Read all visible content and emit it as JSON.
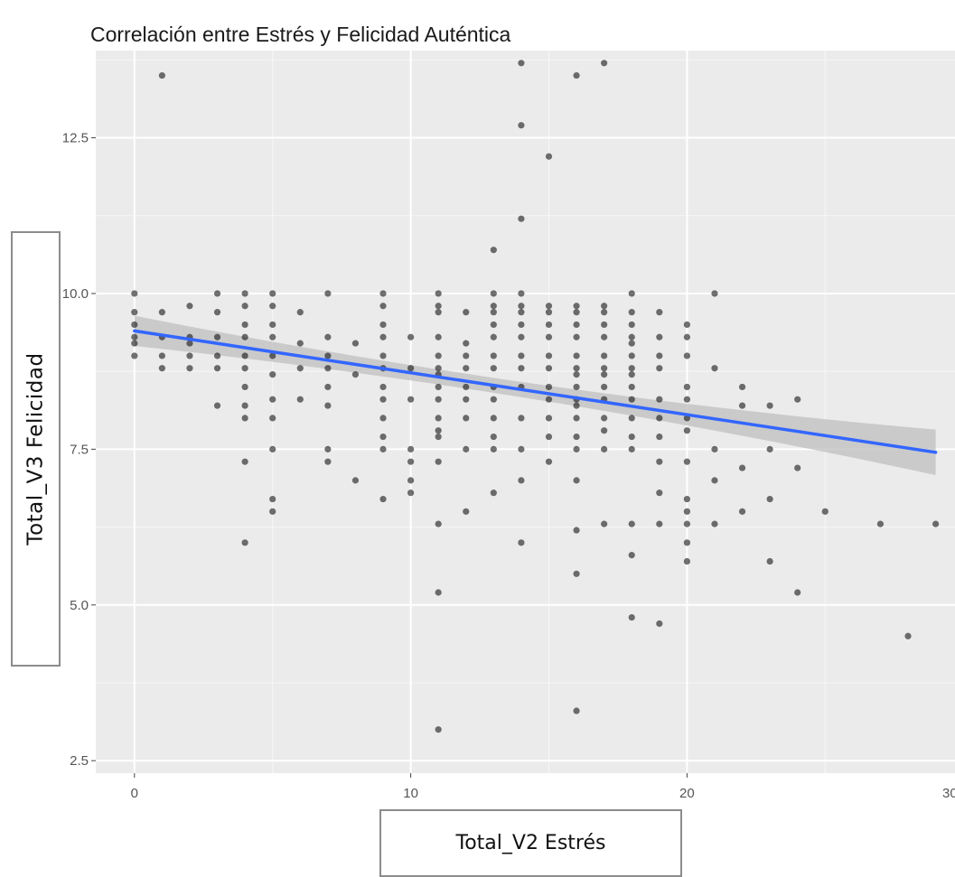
{
  "chart_data": {
    "type": "scatter",
    "title": "Correlación entre Estrés y Felicidad Auténtica",
    "xlabel": "Total_V2 Estrés",
    "ylabel": "Total_V3 Felicidad",
    "xlim": [
      -1.4,
      29.7
    ],
    "ylim": [
      2.3,
      13.9
    ],
    "xticks": [
      {
        "value": 0,
        "label": "0"
      },
      {
        "value": 10,
        "label": "10"
      },
      {
        "value": 20,
        "label": "20"
      },
      {
        "value": 30,
        "label": "30"
      }
    ],
    "yticks": [
      {
        "value": 2.5,
        "label": "2.5"
      },
      {
        "value": 5.0,
        "label": "5.0"
      },
      {
        "value": 7.5,
        "label": "7.5"
      },
      {
        "value": 10.0,
        "label": "10.0"
      },
      {
        "value": 12.5,
        "label": "12.5"
      }
    ],
    "grid": true,
    "points": [
      [
        0,
        10.0
      ],
      [
        0,
        9.7
      ],
      [
        0,
        9.5
      ],
      [
        0,
        9.3
      ],
      [
        0,
        9.2
      ],
      [
        0,
        9.0
      ],
      [
        1,
        13.5
      ],
      [
        1,
        9.7
      ],
      [
        1,
        9.3
      ],
      [
        1,
        9.0
      ],
      [
        1,
        8.8
      ],
      [
        2,
        9.8
      ],
      [
        2,
        9.3
      ],
      [
        2,
        9.2
      ],
      [
        2,
        9.0
      ],
      [
        2,
        8.8
      ],
      [
        3,
        10.0
      ],
      [
        3,
        9.7
      ],
      [
        3,
        9.3
      ],
      [
        3,
        9.0
      ],
      [
        3,
        8.8
      ],
      [
        3,
        8.2
      ],
      [
        4,
        10.0
      ],
      [
        4,
        9.8
      ],
      [
        4,
        9.5
      ],
      [
        4,
        9.3
      ],
      [
        4,
        9.0
      ],
      [
        4,
        8.8
      ],
      [
        4,
        8.5
      ],
      [
        4,
        8.2
      ],
      [
        4,
        8.0
      ],
      [
        4,
        7.3
      ],
      [
        4,
        6.0
      ],
      [
        5,
        10.0
      ],
      [
        5,
        9.8
      ],
      [
        5,
        9.5
      ],
      [
        5,
        9.3
      ],
      [
        5,
        9.0
      ],
      [
        5,
        8.7
      ],
      [
        5,
        8.3
      ],
      [
        5,
        8.0
      ],
      [
        5,
        7.5
      ],
      [
        5,
        6.7
      ],
      [
        5,
        6.5
      ],
      [
        6,
        9.7
      ],
      [
        6,
        9.2
      ],
      [
        6,
        8.8
      ],
      [
        6,
        8.3
      ],
      [
        7,
        10.0
      ],
      [
        7,
        9.3
      ],
      [
        7,
        9.0
      ],
      [
        7,
        8.8
      ],
      [
        7,
        8.5
      ],
      [
        7,
        8.2
      ],
      [
        7,
        7.5
      ],
      [
        7,
        7.3
      ],
      [
        8,
        9.2
      ],
      [
        8,
        8.7
      ],
      [
        8,
        7.0
      ],
      [
        9,
        10.0
      ],
      [
        9,
        9.8
      ],
      [
        9,
        9.5
      ],
      [
        9,
        9.3
      ],
      [
        9,
        9.0
      ],
      [
        9,
        8.8
      ],
      [
        9,
        8.5
      ],
      [
        9,
        8.3
      ],
      [
        9,
        8.0
      ],
      [
        9,
        7.7
      ],
      [
        9,
        7.5
      ],
      [
        9,
        6.7
      ],
      [
        10,
        9.3
      ],
      [
        10,
        8.8
      ],
      [
        10,
        8.3
      ],
      [
        10,
        7.5
      ],
      [
        10,
        7.3
      ],
      [
        10,
        7.0
      ],
      [
        10,
        6.8
      ],
      [
        11,
        10.0
      ],
      [
        11,
        9.8
      ],
      [
        11,
        9.7
      ],
      [
        11,
        9.3
      ],
      [
        11,
        9.0
      ],
      [
        11,
        8.8
      ],
      [
        11,
        8.7
      ],
      [
        11,
        8.5
      ],
      [
        11,
        8.3
      ],
      [
        11,
        8.0
      ],
      [
        11,
        7.8
      ],
      [
        11,
        7.7
      ],
      [
        11,
        7.3
      ],
      [
        11,
        6.3
      ],
      [
        11,
        5.2
      ],
      [
        11,
        3.0
      ],
      [
        12,
        9.7
      ],
      [
        12,
        9.2
      ],
      [
        12,
        9.0
      ],
      [
        12,
        8.8
      ],
      [
        12,
        8.5
      ],
      [
        12,
        8.3
      ],
      [
        12,
        8.0
      ],
      [
        12,
        7.5
      ],
      [
        12,
        6.5
      ],
      [
        13,
        10.7
      ],
      [
        13,
        10.0
      ],
      [
        13,
        9.8
      ],
      [
        13,
        9.7
      ],
      [
        13,
        9.5
      ],
      [
        13,
        9.3
      ],
      [
        13,
        9.0
      ],
      [
        13,
        8.8
      ],
      [
        13,
        8.5
      ],
      [
        13,
        8.3
      ],
      [
        13,
        8.0
      ],
      [
        13,
        7.7
      ],
      [
        13,
        7.5
      ],
      [
        13,
        6.8
      ],
      [
        14,
        13.7
      ],
      [
        14,
        12.7
      ],
      [
        14,
        11.2
      ],
      [
        14,
        10.0
      ],
      [
        14,
        9.8
      ],
      [
        14,
        9.7
      ],
      [
        14,
        9.5
      ],
      [
        14,
        9.3
      ],
      [
        14,
        9.0
      ],
      [
        14,
        8.8
      ],
      [
        14,
        8.5
      ],
      [
        14,
        8.0
      ],
      [
        14,
        7.5
      ],
      [
        14,
        7.0
      ],
      [
        14,
        6.0
      ],
      [
        15,
        12.2
      ],
      [
        15,
        9.8
      ],
      [
        15,
        9.7
      ],
      [
        15,
        9.5
      ],
      [
        15,
        9.3
      ],
      [
        15,
        9.0
      ],
      [
        15,
        8.8
      ],
      [
        15,
        8.5
      ],
      [
        15,
        8.3
      ],
      [
        15,
        8.0
      ],
      [
        15,
        7.7
      ],
      [
        15,
        7.3
      ],
      [
        16,
        13.5
      ],
      [
        16,
        9.8
      ],
      [
        16,
        9.7
      ],
      [
        16,
        9.5
      ],
      [
        16,
        9.3
      ],
      [
        16,
        9.0
      ],
      [
        16,
        8.8
      ],
      [
        16,
        8.7
      ],
      [
        16,
        8.5
      ],
      [
        16,
        8.3
      ],
      [
        16,
        8.2
      ],
      [
        16,
        8.0
      ],
      [
        16,
        7.7
      ],
      [
        16,
        7.5
      ],
      [
        16,
        7.0
      ],
      [
        16,
        6.2
      ],
      [
        16,
        5.5
      ],
      [
        16,
        3.3
      ],
      [
        17,
        13.7
      ],
      [
        17,
        9.8
      ],
      [
        17,
        9.7
      ],
      [
        17,
        9.5
      ],
      [
        17,
        9.3
      ],
      [
        17,
        9.0
      ],
      [
        17,
        8.8
      ],
      [
        17,
        8.7
      ],
      [
        17,
        8.5
      ],
      [
        17,
        8.3
      ],
      [
        17,
        8.0
      ],
      [
        17,
        7.8
      ],
      [
        17,
        7.5
      ],
      [
        17,
        6.3
      ],
      [
        18,
        10.0
      ],
      [
        18,
        9.7
      ],
      [
        18,
        9.5
      ],
      [
        18,
        9.3
      ],
      [
        18,
        9.2
      ],
      [
        18,
        9.0
      ],
      [
        18,
        8.8
      ],
      [
        18,
        8.7
      ],
      [
        18,
        8.5
      ],
      [
        18,
        8.3
      ],
      [
        18,
        8.0
      ],
      [
        18,
        7.7
      ],
      [
        18,
        7.5
      ],
      [
        18,
        6.3
      ],
      [
        18,
        5.8
      ],
      [
        18,
        4.8
      ],
      [
        19,
        9.7
      ],
      [
        19,
        9.3
      ],
      [
        19,
        9.0
      ],
      [
        19,
        8.8
      ],
      [
        19,
        8.3
      ],
      [
        19,
        8.0
      ],
      [
        19,
        7.7
      ],
      [
        19,
        7.3
      ],
      [
        19,
        6.8
      ],
      [
        19,
        6.3
      ],
      [
        19,
        4.7
      ],
      [
        20,
        9.5
      ],
      [
        20,
        9.3
      ],
      [
        20,
        9.0
      ],
      [
        20,
        8.5
      ],
      [
        20,
        8.3
      ],
      [
        20,
        8.0
      ],
      [
        20,
        7.8
      ],
      [
        20,
        7.3
      ],
      [
        20,
        6.7
      ],
      [
        20,
        6.5
      ],
      [
        20,
        6.3
      ],
      [
        20,
        6.0
      ],
      [
        20,
        5.7
      ],
      [
        21,
        10.0
      ],
      [
        21,
        8.8
      ],
      [
        21,
        7.5
      ],
      [
        21,
        7.0
      ],
      [
        21,
        6.3
      ],
      [
        22,
        8.5
      ],
      [
        22,
        8.2
      ],
      [
        22,
        7.2
      ],
      [
        22,
        6.5
      ],
      [
        23,
        8.2
      ],
      [
        23,
        7.5
      ],
      [
        23,
        6.7
      ],
      [
        23,
        5.7
      ],
      [
        24,
        8.3
      ],
      [
        24,
        7.2
      ],
      [
        24,
        5.2
      ],
      [
        25,
        6.5
      ],
      [
        27,
        6.3
      ],
      [
        28,
        4.5
      ],
      [
        29,
        6.3
      ]
    ],
    "trend": {
      "type": "linear",
      "color": "#3366ff",
      "x": [
        0,
        29
      ],
      "y": [
        9.4,
        7.45
      ],
      "ci_color": "#bfbfbf"
    },
    "colors": {
      "panel": "#ebebeb",
      "grid_major": "#ffffff",
      "point": "#000000"
    }
  }
}
